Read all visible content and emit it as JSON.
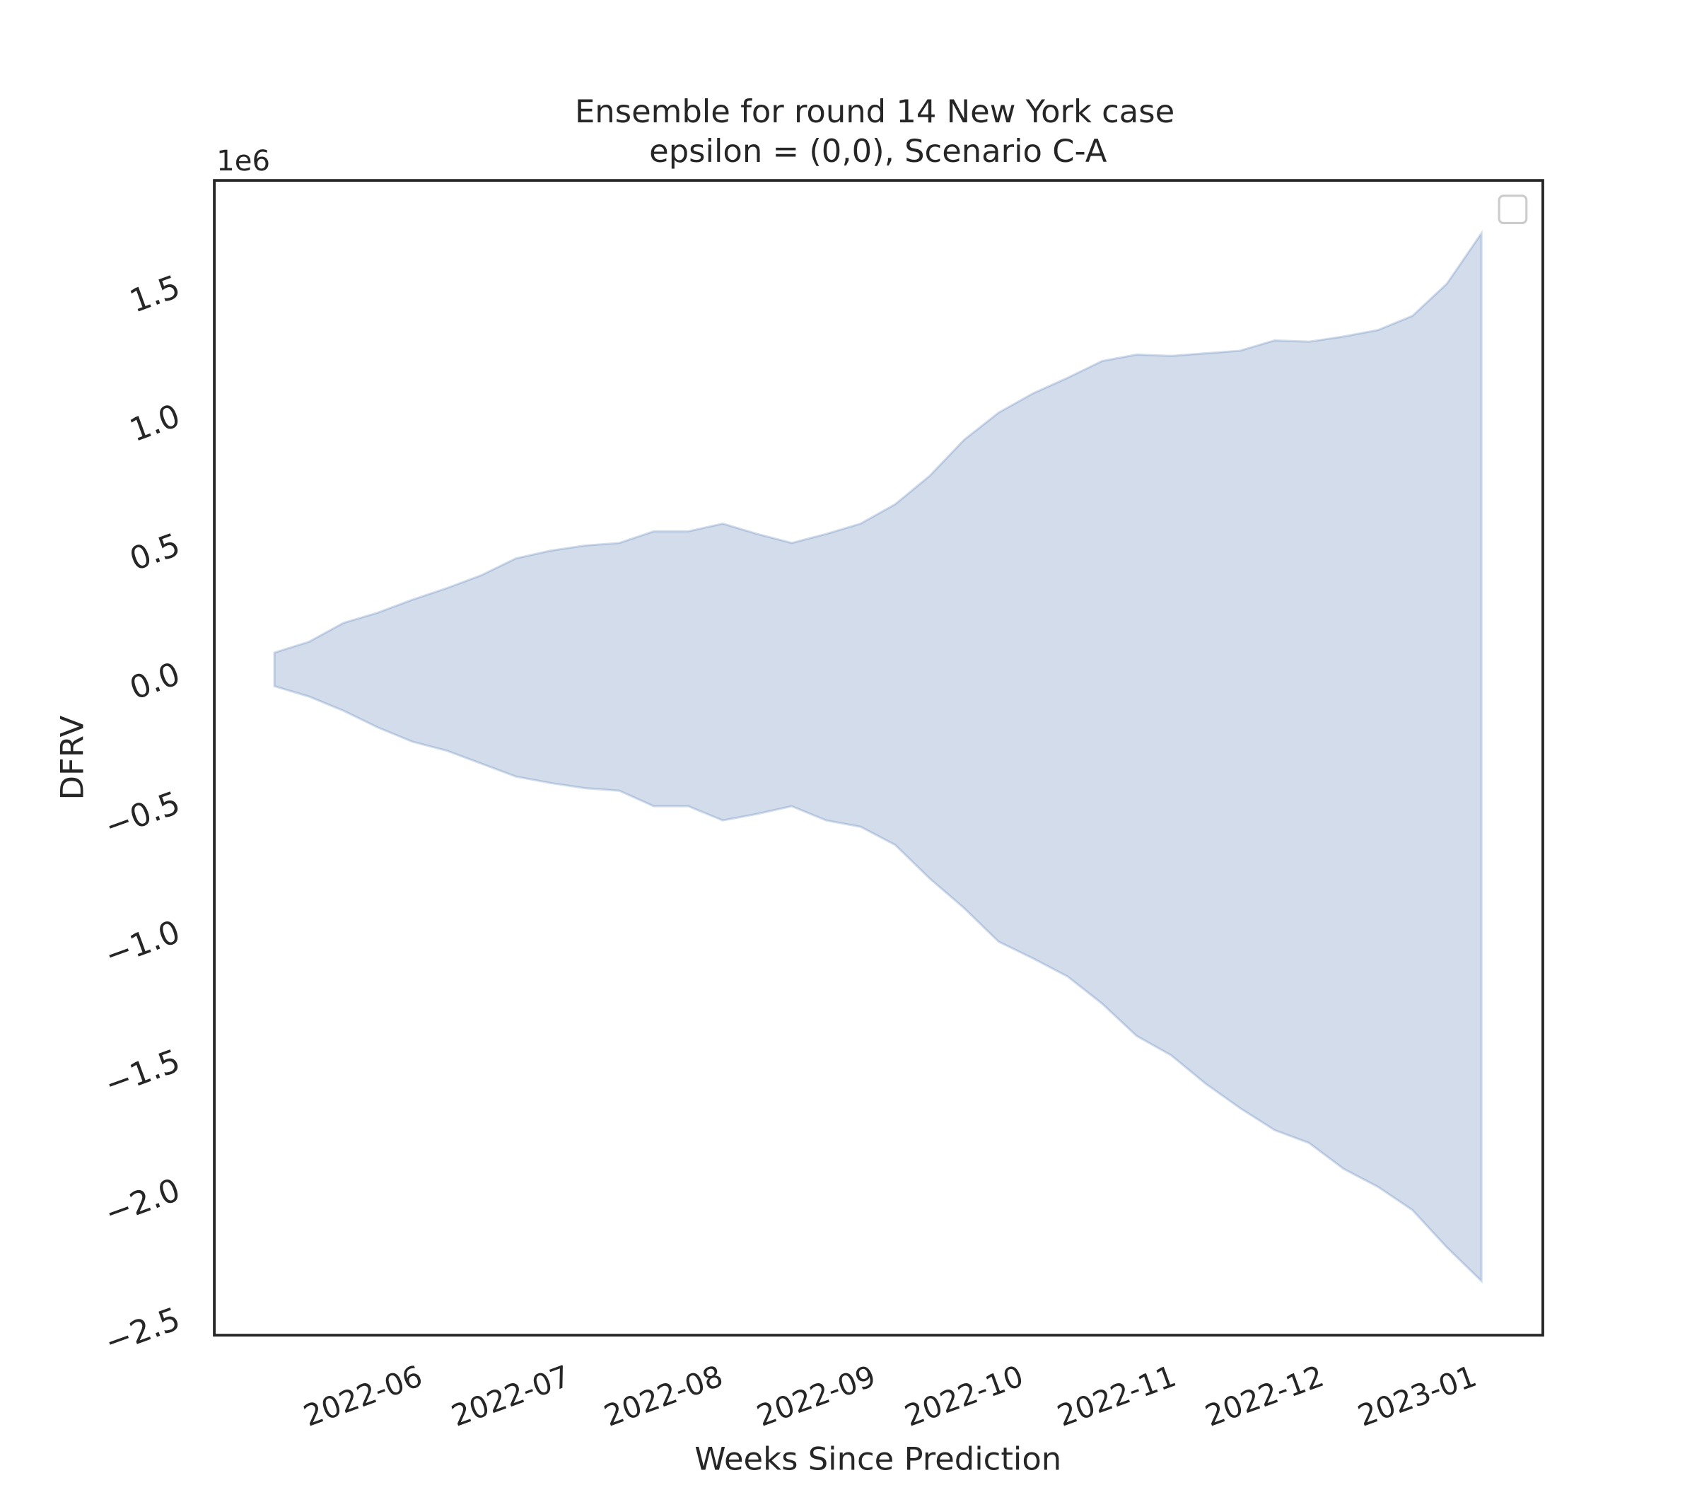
{
  "chart_data": {
    "type": "area",
    "title": "Ensemble for round 14 New York case",
    "subtitle": "epsilon = (0,0), Scenario C-A",
    "x_label": "Weeks Since Prediction",
    "y_label": "DFRV",
    "y_offset_label": "1e6",
    "color": "#4c72b0",
    "x": [
      0,
      1,
      2,
      3,
      4,
      5,
      6,
      7,
      8,
      9,
      10,
      11,
      12,
      13,
      14,
      15,
      16,
      17,
      18,
      19,
      20,
      21,
      22,
      23,
      24,
      25,
      26,
      27,
      28,
      29,
      30,
      31,
      32,
      33,
      34,
      35
    ],
    "y_upper": [
      0.085,
      0.127,
      0.2,
      0.24,
      0.29,
      0.335,
      0.385,
      0.45,
      0.48,
      0.5,
      0.51,
      0.555,
      0.555,
      0.585,
      0.545,
      0.51,
      0.545,
      0.585,
      0.66,
      0.77,
      0.91,
      1.015,
      1.09,
      1.15,
      1.215,
      1.24,
      1.235,
      1.245,
      1.255,
      1.295,
      1.29,
      1.31,
      1.335,
      1.39,
      1.515,
      1.71
    ],
    "y_lower": [
      -0.045,
      -0.085,
      -0.14,
      -0.205,
      -0.26,
      -0.295,
      -0.345,
      -0.395,
      -0.42,
      -0.44,
      -0.45,
      -0.51,
      -0.51,
      -0.565,
      -0.54,
      -0.51,
      -0.565,
      -0.59,
      -0.66,
      -0.79,
      -0.905,
      -1.035,
      -1.1,
      -1.17,
      -1.275,
      -1.4,
      -1.475,
      -1.585,
      -1.68,
      -1.765,
      -1.815,
      -1.915,
      -1.985,
      -2.075,
      -2.22,
      -2.35
    ],
    "xlim": [
      -1.744,
      36.78
    ],
    "xticks": [
      {
        "value": 4.0,
        "label": "2022-06"
      },
      {
        "value": 8.286,
        "label": "2022-07"
      },
      {
        "value": 12.714,
        "label": "2022-08"
      },
      {
        "value": 17.143,
        "label": "2022-09"
      },
      {
        "value": 21.429,
        "label": "2022-10"
      },
      {
        "value": 25.857,
        "label": "2022-11"
      },
      {
        "value": 30.143,
        "label": "2022-12"
      },
      {
        "value": 34.571,
        "label": "2023-01"
      }
    ],
    "ylim": [
      -2.56,
      1.915
    ],
    "yticks": [
      {
        "value": -2.5,
        "label": "−2.5"
      },
      {
        "value": -2.0,
        "label": "−2.0"
      },
      {
        "value": -1.5,
        "label": "−1.5"
      },
      {
        "value": -1.0,
        "label": "−1.0"
      },
      {
        "value": -0.5,
        "label": "−0.5"
      },
      {
        "value": 0,
        "label": "0.0"
      },
      0.5,
      {
        "value": 1.0,
        "label": "1.0"
      },
      1.5
    ]
  }
}
